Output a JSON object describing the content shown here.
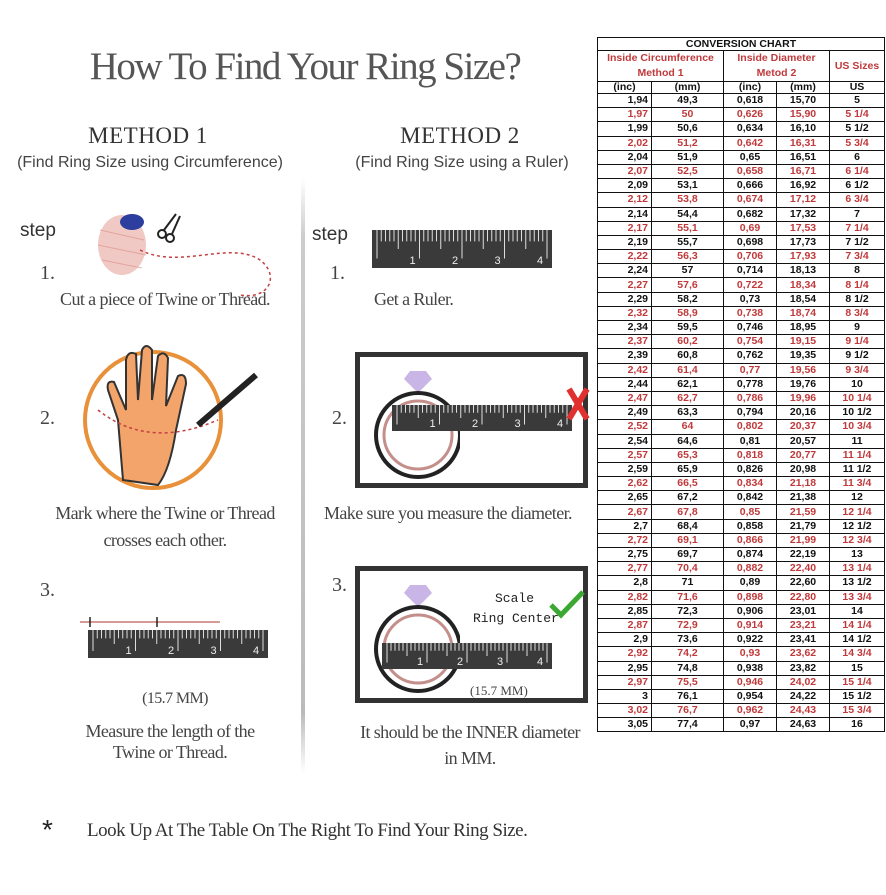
{
  "title": "How To Find Your Ring Size?",
  "method1": {
    "heading": "METHOD 1",
    "subtitle": "(Find Ring Size using Circumference)",
    "step_label": "step",
    "steps": [
      {
        "number": "1.",
        "lines": [
          "Cut a piece of  Twine or Thread."
        ]
      },
      {
        "number": "2.",
        "lines": [
          "Mark where the Twine or Thread",
          "crosses each other."
        ]
      },
      {
        "number": "3.",
        "measurement": "(15.7 MM)",
        "lines": [
          "Measure the length of the",
          "Twine or Thread."
        ]
      }
    ]
  },
  "method2": {
    "heading": "METHOD 2",
    "subtitle": "(Find Ring Size using a Ruler)",
    "step_label": "step",
    "steps": [
      {
        "number": "1.",
        "lines": [
          "Get a Ruler."
        ]
      },
      {
        "number": "2.",
        "lines": [
          "Make sure you measure the diameter."
        ]
      },
      {
        "number": "3.",
        "scale_label": "Scale",
        "center_label": "Ring Center",
        "measurement": "(15.7 MM)",
        "lines": [
          "It should be the INNER diameter",
          "in MM."
        ]
      }
    ]
  },
  "ruler_labels": [
    "1",
    "2",
    "3",
    "4"
  ],
  "footnote": {
    "symbol": "*",
    "text": "Look Up At The Table On The Right To Find Your Ring Size."
  },
  "colors": {
    "accent_red": "#c0393b",
    "check_green": "#3aa832",
    "ring_orange": "#e8913a"
  },
  "icons": [
    "thread-spool-icon",
    "scissors-icon",
    "hand-icon",
    "pen-icon",
    "diamond-icon",
    "x-mark-icon",
    "check-mark-icon"
  ],
  "table": {
    "title": "CONVERSION CHART",
    "group_headers": [
      "Inside Circumference Method 1",
      "Inside Diameter Metod 2",
      "US Sizes"
    ],
    "units": [
      "(inc)",
      "(mm)",
      "(inc)",
      "(mm)",
      "US"
    ],
    "rows": [
      [
        "1,94",
        "49,3",
        "0,618",
        "15,70",
        "5"
      ],
      [
        "1,97",
        "50",
        "0,626",
        "15,90",
        "5 1/4"
      ],
      [
        "1,99",
        "50,6",
        "0,634",
        "16,10",
        "5 1/2"
      ],
      [
        "2,02",
        "51,2",
        "0,642",
        "16,31",
        "5 3/4"
      ],
      [
        "2,04",
        "51,9",
        "0,65",
        "16,51",
        "6"
      ],
      [
        "2,07",
        "52,5",
        "0,658",
        "16,71",
        "6 1/4"
      ],
      [
        "2,09",
        "53,1",
        "0,666",
        "16,92",
        "6 1/2"
      ],
      [
        "2,12",
        "53,8",
        "0,674",
        "17,12",
        "6 3/4"
      ],
      [
        "2,14",
        "54,4",
        "0,682",
        "17,32",
        "7"
      ],
      [
        "2,17",
        "55,1",
        "0,69",
        "17,53",
        "7 1/4"
      ],
      [
        "2,19",
        "55,7",
        "0,698",
        "17,73",
        "7 1/2"
      ],
      [
        "2,22",
        "56,3",
        "0,706",
        "17,93",
        "7 3/4"
      ],
      [
        "2,24",
        "57",
        "0,714",
        "18,13",
        "8"
      ],
      [
        "2,27",
        "57,6",
        "0,722",
        "18,34",
        "8 1/4"
      ],
      [
        "2,29",
        "58,2",
        "0,73",
        "18,54",
        "8 1/2"
      ],
      [
        "2,32",
        "58,9",
        "0,738",
        "18,74",
        "8 3/4"
      ],
      [
        "2,34",
        "59,5",
        "0,746",
        "18,95",
        "9"
      ],
      [
        "2,37",
        "60,2",
        "0,754",
        "19,15",
        "9 1/4"
      ],
      [
        "2,39",
        "60,8",
        "0,762",
        "19,35",
        "9 1/2"
      ],
      [
        "2,42",
        "61,4",
        "0,77",
        "19,56",
        "9 3/4"
      ],
      [
        "2,44",
        "62,1",
        "0,778",
        "19,76",
        "10"
      ],
      [
        "2,47",
        "62,7",
        "0,786",
        "19,96",
        "10 1/4"
      ],
      [
        "2,49",
        "63,3",
        "0,794",
        "20,16",
        "10 1/2"
      ],
      [
        "2,52",
        "64",
        "0,802",
        "20,37",
        "10 3/4"
      ],
      [
        "2,54",
        "64,6",
        "0,81",
        "20,57",
        "11"
      ],
      [
        "2,57",
        "65,3",
        "0,818",
        "20,77",
        "11 1/4"
      ],
      [
        "2,59",
        "65,9",
        "0,826",
        "20,98",
        "11 1/2"
      ],
      [
        "2,62",
        "66,5",
        "0,834",
        "21,18",
        "11 3/4"
      ],
      [
        "2,65",
        "67,2",
        "0,842",
        "21,38",
        "12"
      ],
      [
        "2,67",
        "67,8",
        "0,85",
        "21,59",
        "12 1/4"
      ],
      [
        "2,7",
        "68,4",
        "0,858",
        "21,79",
        "12 1/2"
      ],
      [
        "2,72",
        "69,1",
        "0,866",
        "21,99",
        "12 3/4"
      ],
      [
        "2,75",
        "69,7",
        "0,874",
        "22,19",
        "13"
      ],
      [
        "2,77",
        "70,4",
        "0,882",
        "22,40",
        "13 1/4"
      ],
      [
        "2,8",
        "71",
        "0,89",
        "22,60",
        "13 1/2"
      ],
      [
        "2,82",
        "71,6",
        "0,898",
        "22,80",
        "13 3/4"
      ],
      [
        "2,85",
        "72,3",
        "0,906",
        "23,01",
        "14"
      ],
      [
        "2,87",
        "72,9",
        "0,914",
        "23,21",
        "14 1/4"
      ],
      [
        "2,9",
        "73,6",
        "0,922",
        "23,41",
        "14 1/2"
      ],
      [
        "2,92",
        "74,2",
        "0,93",
        "23,62",
        "14 3/4"
      ],
      [
        "2,95",
        "74,8",
        "0,938",
        "23,82",
        "15"
      ],
      [
        "2,97",
        "75,5",
        "0,946",
        "24,02",
        "15 1/4"
      ],
      [
        "3",
        "76,1",
        "0,954",
        "24,22",
        "15 1/2"
      ],
      [
        "3,02",
        "76,7",
        "0,962",
        "24,43",
        "15 3/4"
      ],
      [
        "3,05",
        "77,4",
        "0,97",
        "24,63",
        "16"
      ]
    ]
  }
}
